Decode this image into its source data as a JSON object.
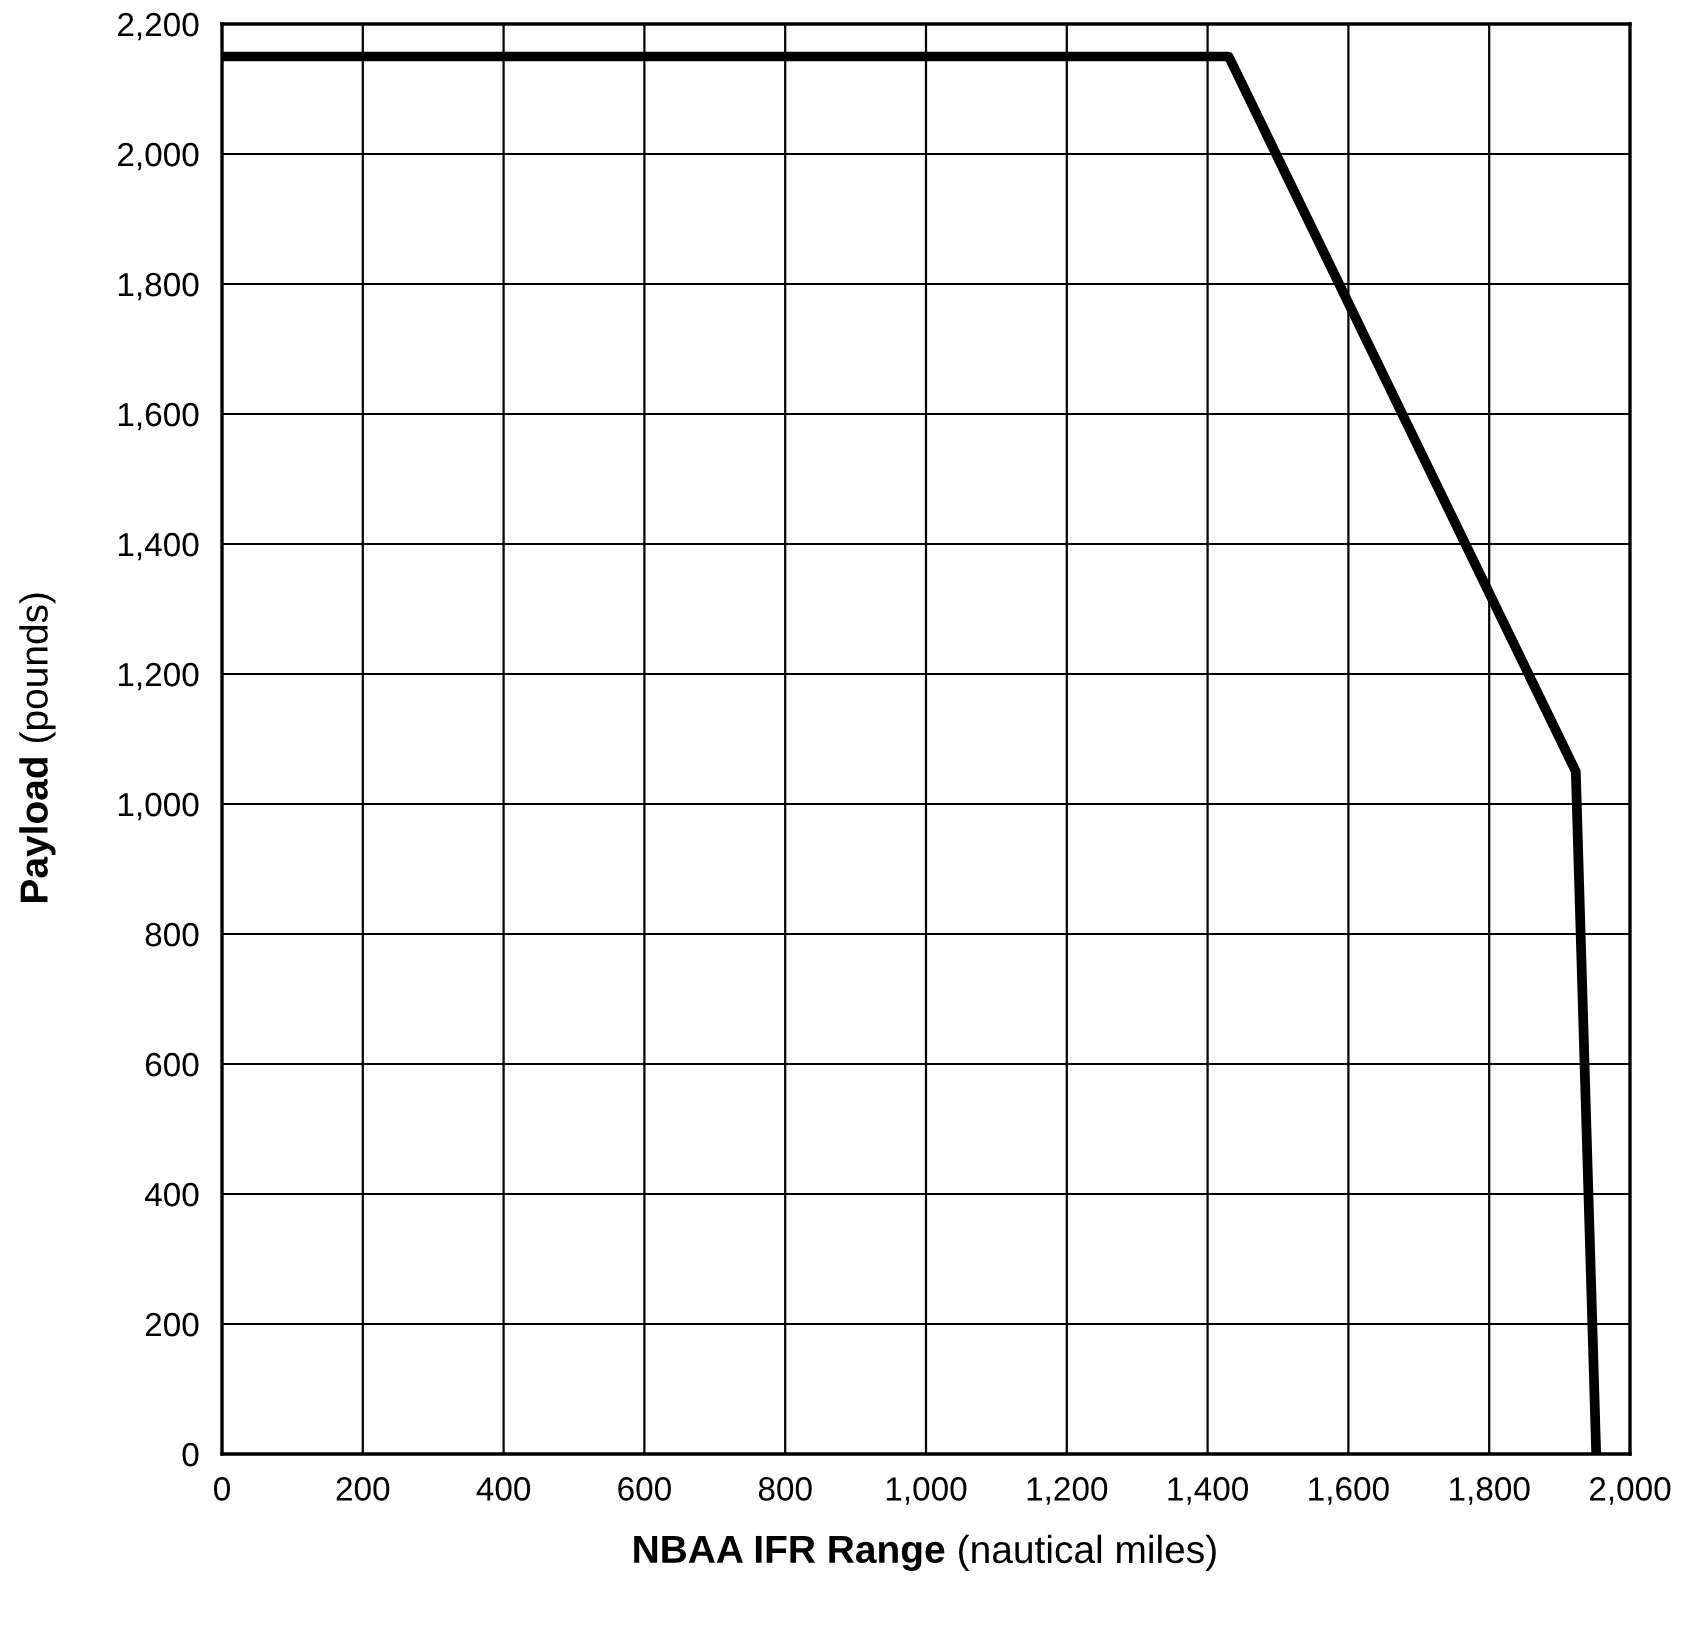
{
  "chart_data": {
    "type": "line",
    "xlabel": "NBAA IFR Range (nautical miles)",
    "ylabel": "Payload (pounds)",
    "x": [
      0,
      1430,
      1923,
      1952
    ],
    "series": [
      {
        "color": "#000000",
        "values": [
          2150,
          2150,
          1050,
          0
        ]
      }
    ],
    "xlim": [
      0,
      2000
    ],
    "xticks": [
      {
        "value": 0,
        "label": "0"
      },
      {
        "value": 200,
        "label": "200"
      },
      {
        "value": 400,
        "label": "400"
      },
      {
        "value": 600,
        "label": "600"
      },
      {
        "value": 800,
        "label": "800"
      },
      {
        "value": 1000,
        "label": "1,000"
      },
      {
        "value": 1200,
        "label": "1,200"
      },
      {
        "value": 1400,
        "label": "1,400"
      },
      {
        "value": 1600,
        "label": "1,600"
      },
      {
        "value": 1800,
        "label": "1,800"
      },
      {
        "value": 2000,
        "label": "2,000"
      }
    ],
    "ylim": [
      0,
      2200
    ],
    "yticks": [
      {
        "value": 0,
        "label": "0"
      },
      {
        "value": 200,
        "label": "200"
      },
      {
        "value": 400,
        "label": "400"
      },
      {
        "value": 600,
        "label": "600"
      },
      {
        "value": 800,
        "label": "800"
      },
      {
        "value": 1000,
        "label": "1,000"
      },
      {
        "value": 1200,
        "label": "1,200"
      },
      {
        "value": 1400,
        "label": "1,400"
      },
      {
        "value": 1600,
        "label": "1,600"
      },
      {
        "value": 1800,
        "label": "1,800"
      },
      {
        "value": 2000,
        "label": "2,000"
      },
      {
        "value": 2200,
        "label": "2,200"
      }
    ],
    "grid": true,
    "legend": false
  }
}
